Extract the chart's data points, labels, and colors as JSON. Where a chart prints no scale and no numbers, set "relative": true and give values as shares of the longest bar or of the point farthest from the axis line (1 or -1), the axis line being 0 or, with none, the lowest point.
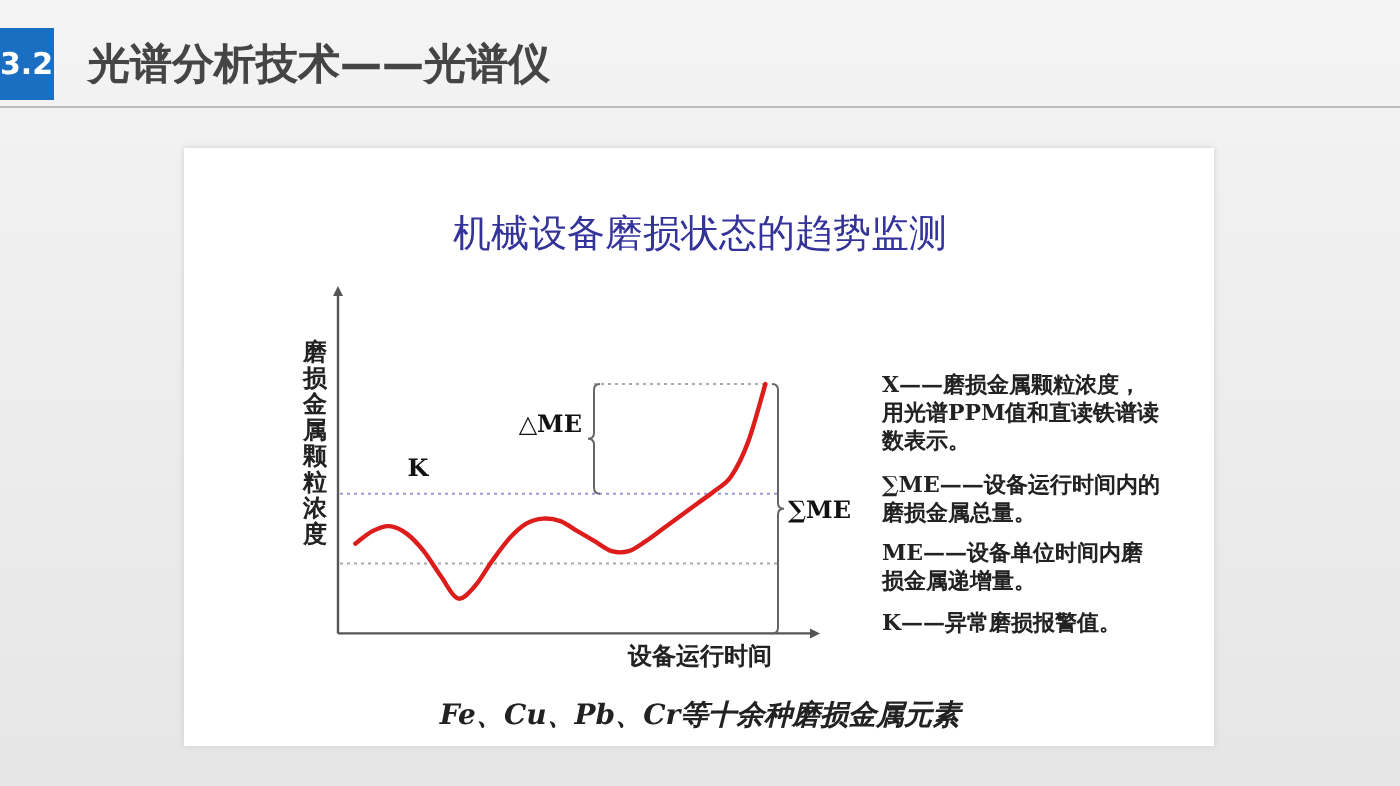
{
  "chart_data": {
    "type": "line",
    "title": "机械设备磨损状态的趋势监测",
    "xlabel": "设备运行时间",
    "ylabel": "磨损金属颗粒浓度",
    "relative": true,
    "marker": "none",
    "line_style": "solid",
    "categories": [
      null,
      null,
      null,
      null,
      null,
      null,
      null,
      null,
      null,
      null,
      null,
      null,
      null,
      null,
      null,
      null,
      null,
      null,
      null,
      null,
      null,
      null,
      null,
      null,
      null
    ],
    "series": [
      {
        "color": "#dd1c1c",
        "values": [
          0.36,
          0.41,
          0.43,
          0.4,
          0.33,
          0.23,
          0.14,
          0.19,
          0.29,
          0.38,
          0.44,
          0.46,
          0.45,
          0.41,
          0.37,
          0.33,
          0.33,
          0.37,
          0.42,
          0.47,
          0.52,
          0.57,
          0.63,
          0.77,
          1.0
        ]
      }
    ],
    "ref_lines": [
      {
        "axis": "y",
        "value": 0.56,
        "label": "K",
        "color": "#9a9ad8",
        "line_style": "dotted"
      },
      {
        "axis": "y",
        "value": 0.28,
        "color": "#aaaaaa",
        "line_style": "dotted"
      }
    ],
    "annotations": [
      "3.2",
      "光谱分析技术——光谱仪",
      "△ME",
      "∑ME",
      "X——磨损金属颗粒浓度，用光谱PPM值和直读铁谱读数表示。",
      "∑ME——设备运行时间内的磨损金属总量。",
      "ME——设备单位时间内磨损金属递增量。",
      "K——异常磨损报警值。",
      "Fe、Cu、Pb、Cr等十余种磨损金属元素"
    ]
  }
}
